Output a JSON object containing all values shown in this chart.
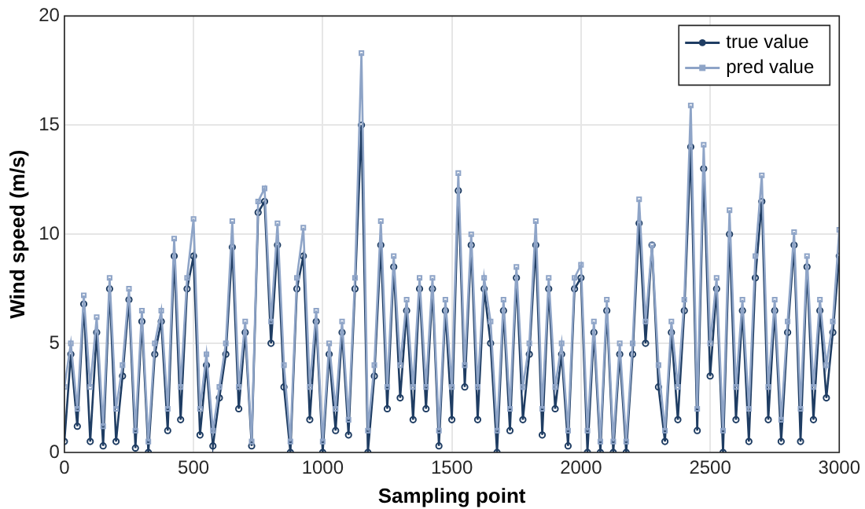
{
  "chart_data": {
    "type": "line",
    "xlabel": "Sampling point",
    "ylabel": "Wind speed (m/s)",
    "x": [
      0,
      25,
      50,
      75,
      100,
      125,
      150,
      175,
      200,
      225,
      250,
      275,
      300,
      325,
      350,
      375,
      400,
      425,
      450,
      475,
      500,
      525,
      550,
      575,
      600,
      625,
      650,
      675,
      700,
      725,
      750,
      775,
      800,
      825,
      850,
      875,
      900,
      925,
      950,
      975,
      1000,
      1025,
      1050,
      1075,
      1100,
      1125,
      1150,
      1175,
      1200,
      1225,
      1250,
      1275,
      1300,
      1325,
      1350,
      1375,
      1400,
      1425,
      1450,
      1475,
      1500,
      1525,
      1550,
      1575,
      1600,
      1625,
      1650,
      1675,
      1700,
      1725,
      1750,
      1775,
      1800,
      1825,
      1850,
      1875,
      1900,
      1925,
      1950,
      1975,
      2000,
      2025,
      2050,
      2075,
      2100,
      2125,
      2150,
      2175,
      2200,
      2225,
      2250,
      2275,
      2300,
      2325,
      2350,
      2375,
      2400,
      2425,
      2450,
      2475,
      2500,
      2525,
      2550,
      2575,
      2600,
      2625,
      2650,
      2675,
      2700,
      2725,
      2750,
      2775,
      2800,
      2825,
      2850,
      2875,
      2900,
      2925,
      2950,
      2975,
      3000
    ],
    "series": [
      {
        "name": "true value",
        "color": "#1f3d63",
        "marker": "circle",
        "values": [
          0.5,
          4.5,
          1.2,
          6.8,
          0.5,
          5.5,
          0.3,
          7.5,
          0.5,
          3.5,
          7,
          0.2,
          6,
          0,
          4.5,
          6,
          1,
          9,
          1.5,
          7.5,
          9,
          0.8,
          4,
          0.3,
          2.5,
          4.5,
          9.4,
          2,
          5.5,
          0.3,
          11,
          11.5,
          5,
          9.5,
          3,
          0,
          7.5,
          9,
          1.5,
          6,
          0,
          4.5,
          1,
          5.5,
          0.8,
          7.5,
          15,
          0,
          3.5,
          9.5,
          2,
          8.5,
          2.5,
          6.5,
          1.5,
          7.5,
          2,
          7.5,
          0.3,
          6.5,
          1.5,
          12,
          3,
          9.5,
          1.5,
          7.5,
          5,
          0,
          6.5,
          1,
          8,
          1.5,
          4.5,
          9.5,
          0.8,
          7.5,
          2,
          4.5,
          0.3,
          7.5,
          8,
          0,
          5.5,
          0,
          6.5,
          0,
          4.5,
          0,
          4.5,
          10.5,
          5,
          9.5,
          3,
          0.5,
          5.5,
          1.5,
          6.5,
          14,
          1,
          13,
          3.5,
          7.5,
          0,
          10,
          1.5,
          6.5,
          0.5,
          8,
          11.5,
          1.5,
          6.5,
          0.5,
          5.5,
          9.5,
          0.5,
          8.5,
          1.5,
          6.5,
          2.5,
          5.5,
          9
        ]
      },
      {
        "name": "pred value",
        "color": "#8ea4c7",
        "marker": "square",
        "values": [
          3,
          5,
          2,
          7.2,
          3,
          6.2,
          1.2,
          8,
          2,
          4,
          7.5,
          1,
          6.5,
          0.5,
          5,
          6.5,
          2,
          9.8,
          3,
          8,
          10.7,
          2,
          4.5,
          1,
          3,
          5,
          10.6,
          3,
          6,
          0.5,
          11.5,
          12.1,
          6,
          10.5,
          4,
          0.5,
          8,
          10.3,
          3,
          6.5,
          0.5,
          5,
          2,
          6,
          1.5,
          8,
          18.3,
          1,
          4,
          10.6,
          3,
          9,
          4,
          7,
          3,
          8,
          3,
          8,
          1,
          7,
          3,
          12.8,
          4,
          10,
          3,
          8,
          6,
          1,
          7,
          2,
          8.5,
          3,
          5,
          10.6,
          2,
          8,
          3,
          5,
          1,
          8,
          8.6,
          1,
          6,
          0.5,
          7,
          0.5,
          5,
          0.5,
          5,
          11.6,
          6,
          9.5,
          4,
          1,
          6,
          3,
          7,
          15.9,
          2,
          14.1,
          5,
          8,
          1,
          11.1,
          3,
          7,
          2,
          9,
          12.7,
          3,
          7,
          1.5,
          6,
          10.1,
          2,
          9,
          3,
          7,
          4,
          6,
          10.2
        ]
      }
    ],
    "xlim": [
      0,
      3000
    ],
    "xticks": [
      0,
      500,
      1000,
      1500,
      2000,
      2500,
      3000
    ],
    "ylim": [
      0,
      20
    ],
    "yticks": [
      0,
      5,
      10,
      15,
      20
    ],
    "grid": true,
    "legend": "top right",
    "line_style": "solid"
  }
}
